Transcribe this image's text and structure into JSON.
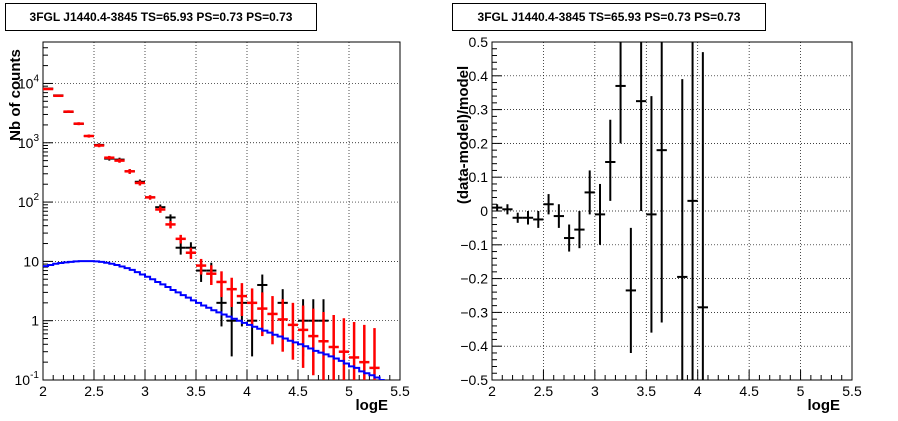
{
  "chart_data": [
    {
      "type": "scatter",
      "title": "3FGL J1440.4-3845 TS=65.93 PS=0.73 PS=0.73",
      "xlabel": "logE",
      "ylabel": "Nb of counts",
      "xlim": [
        2,
        5.5
      ],
      "ylim": [
        0.1,
        50000
      ],
      "yscale": "log",
      "grid": true,
      "x_ticks": [
        2,
        2.5,
        3,
        3.5,
        4,
        4.5,
        5,
        5.5
      ],
      "x_tick_labels": [
        "2",
        "2.5",
        "3",
        "3.5",
        "4",
        "4.5",
        "5",
        "5.5"
      ],
      "y_ticks": [
        0.1,
        1,
        10,
        100,
        1000,
        10000
      ],
      "y_tick_labels": [
        "10^-1",
        "1",
        "10",
        "10^2",
        "10^3",
        "10^4"
      ],
      "series": [
        {
          "color": "#000000",
          "style": "errorbars",
          "points": [
            {
              "x": 2.05,
              "y": 8200,
              "ylo": 8020,
              "yhi": 8380
            },
            {
              "x": 2.15,
              "y": 6300,
              "ylo": 6140,
              "yhi": 6460
            },
            {
              "x": 2.25,
              "y": 3300,
              "ylo": 3190,
              "yhi": 3410
            },
            {
              "x": 2.35,
              "y": 2080,
              "ylo": 1990,
              "yhi": 2170
            },
            {
              "x": 2.45,
              "y": 1300,
              "ylo": 1230,
              "yhi": 1370
            },
            {
              "x": 2.55,
              "y": 920,
              "ylo": 860,
              "yhi": 980
            },
            {
              "x": 2.65,
              "y": 540,
              "ylo": 500,
              "yhi": 580
            },
            {
              "x": 2.75,
              "y": 520,
              "ylo": 480,
              "yhi": 560
            },
            {
              "x": 2.85,
              "y": 330,
              "ylo": 300,
              "yhi": 360
            },
            {
              "x": 2.95,
              "y": 220,
              "ylo": 200,
              "yhi": 240
            },
            {
              "x": 3.05,
              "y": 120,
              "ylo": 110,
              "yhi": 130
            },
            {
              "x": 3.15,
              "y": 82,
              "ylo": 73,
              "yhi": 91
            },
            {
              "x": 3.25,
              "y": 55,
              "ylo": 48,
              "yhi": 62
            },
            {
              "x": 3.35,
              "y": 17,
              "ylo": 13,
              "yhi": 21
            },
            {
              "x": 3.45,
              "y": 17,
              "ylo": 13,
              "yhi": 21
            },
            {
              "x": 3.55,
              "y": 7,
              "ylo": 4.5,
              "yhi": 9.5
            },
            {
              "x": 3.65,
              "y": 7,
              "ylo": 4.5,
              "yhi": 9.5
            },
            {
              "x": 3.75,
              "y": 2,
              "ylo": 0.8,
              "yhi": 3.4
            },
            {
              "x": 3.85,
              "y": 1,
              "ylo": 0.25,
              "yhi": 2.3
            },
            {
              "x": 3.95,
              "y": 2,
              "ylo": 0.8,
              "yhi": 3.4
            },
            {
              "x": 4.05,
              "y": 1,
              "ylo": 0.25,
              "yhi": 2.3
            },
            {
              "x": 4.15,
              "y": 4,
              "ylo": 2.2,
              "yhi": 6
            },
            {
              "x": 4.35,
              "y": 2,
              "ylo": 0.8,
              "yhi": 3.4
            },
            {
              "x": 4.55,
              "y": 1,
              "ylo": 0.25,
              "yhi": 2.3
            },
            {
              "x": 4.65,
              "y": 1,
              "ylo": 0.25,
              "yhi": 2.3
            },
            {
              "x": 4.75,
              "y": 1,
              "ylo": 0.25,
              "yhi": 2.3
            }
          ]
        },
        {
          "color": "#ff0000",
          "style": "errorbars",
          "points": [
            {
              "x": 2.05,
              "y": 8050,
              "ylo": 7780,
              "yhi": 8330
            },
            {
              "x": 2.15,
              "y": 6200,
              "ylo": 5980,
              "yhi": 6420
            },
            {
              "x": 2.25,
              "y": 3350,
              "ylo": 3180,
              "yhi": 3520
            },
            {
              "x": 2.35,
              "y": 2100,
              "ylo": 1980,
              "yhi": 2220
            },
            {
              "x": 2.45,
              "y": 1300,
              "ylo": 1220,
              "yhi": 1380
            },
            {
              "x": 2.55,
              "y": 900,
              "ylo": 840,
              "yhi": 960
            },
            {
              "x": 2.65,
              "y": 560,
              "ylo": 520,
              "yhi": 600
            },
            {
              "x": 2.75,
              "y": 500,
              "ylo": 460,
              "yhi": 540
            },
            {
              "x": 2.85,
              "y": 330,
              "ylo": 300,
              "yhi": 360
            },
            {
              "x": 2.95,
              "y": 210,
              "ylo": 190,
              "yhi": 230
            },
            {
              "x": 3.05,
              "y": 120,
              "ylo": 110,
              "yhi": 130
            },
            {
              "x": 3.15,
              "y": 75,
              "ylo": 66,
              "yhi": 84
            },
            {
              "x": 3.25,
              "y": 42,
              "ylo": 36,
              "yhi": 48
            },
            {
              "x": 3.35,
              "y": 24,
              "ylo": 20,
              "yhi": 28
            },
            {
              "x": 3.45,
              "y": 14,
              "ylo": 11,
              "yhi": 17
            },
            {
              "x": 3.55,
              "y": 8.5,
              "ylo": 6,
              "yhi": 11
            },
            {
              "x": 3.65,
              "y": 6.2,
              "ylo": 4,
              "yhi": 8.6
            },
            {
              "x": 3.75,
              "y": 4.5,
              "ylo": 2.5,
              "yhi": 6.8
            },
            {
              "x": 3.85,
              "y": 3.4,
              "ylo": 1.7,
              "yhi": 5.3
            },
            {
              "x": 3.95,
              "y": 2.6,
              "ylo": 1.2,
              "yhi": 4.3
            },
            {
              "x": 4.05,
              "y": 2.0,
              "ylo": 0.8,
              "yhi": 3.5
            },
            {
              "x": 4.15,
              "y": 1.6,
              "ylo": 0.55,
              "yhi": 3.0
            },
            {
              "x": 4.25,
              "y": 1.3,
              "ylo": 0.4,
              "yhi": 2.6
            },
            {
              "x": 4.35,
              "y": 1.05,
              "ylo": 0.3,
              "yhi": 2.3
            },
            {
              "x": 4.45,
              "y": 0.85,
              "ylo": 0.22,
              "yhi": 2.0
            },
            {
              "x": 4.55,
              "y": 0.7,
              "ylo": 0.16,
              "yhi": 1.8
            },
            {
              "x": 4.65,
              "y": 0.55,
              "ylo": 0.12,
              "yhi": 1.6
            },
            {
              "x": 4.75,
              "y": 0.45,
              "ylo": 0.1,
              "yhi": 1.4
            },
            {
              "x": 4.85,
              "y": 0.36,
              "ylo": 0.1,
              "yhi": 1.25
            },
            {
              "x": 4.95,
              "y": 0.3,
              "ylo": 0.1,
              "yhi": 1.1
            },
            {
              "x": 5.05,
              "y": 0.24,
              "ylo": 0.1,
              "yhi": 0.95
            },
            {
              "x": 5.15,
              "y": 0.2,
              "ylo": 0.1,
              "yhi": 0.85
            },
            {
              "x": 5.25,
              "y": 0.16,
              "ylo": 0.1,
              "yhi": 0.75
            }
          ]
        },
        {
          "color": "#0000ff",
          "style": "step",
          "bin_width": 0.05,
          "points": [
            {
              "x": 2.025,
              "y": 8.3
            },
            {
              "x": 2.075,
              "y": 8.7
            },
            {
              "x": 2.125,
              "y": 9.1
            },
            {
              "x": 2.175,
              "y": 9.4
            },
            {
              "x": 2.225,
              "y": 9.6
            },
            {
              "x": 2.275,
              "y": 9.8
            },
            {
              "x": 2.325,
              "y": 10.0
            },
            {
              "x": 2.375,
              "y": 10.1
            },
            {
              "x": 2.425,
              "y": 10.1
            },
            {
              "x": 2.475,
              "y": 10.1
            },
            {
              "x": 2.525,
              "y": 10.0
            },
            {
              "x": 2.575,
              "y": 9.8
            },
            {
              "x": 2.625,
              "y": 9.5
            },
            {
              "x": 2.675,
              "y": 9.1
            },
            {
              "x": 2.725,
              "y": 8.7
            },
            {
              "x": 2.775,
              "y": 8.2
            },
            {
              "x": 2.825,
              "y": 7.7
            },
            {
              "x": 2.875,
              "y": 7.2
            },
            {
              "x": 2.925,
              "y": 6.6
            },
            {
              "x": 2.975,
              "y": 6.0
            },
            {
              "x": 3.025,
              "y": 5.5
            },
            {
              "x": 3.075,
              "y": 5.0
            },
            {
              "x": 3.125,
              "y": 4.5
            },
            {
              "x": 3.175,
              "y": 4.1
            },
            {
              "x": 3.225,
              "y": 3.7
            },
            {
              "x": 3.275,
              "y": 3.3
            },
            {
              "x": 3.325,
              "y": 3.0
            },
            {
              "x": 3.375,
              "y": 2.7
            },
            {
              "x": 3.425,
              "y": 2.45
            },
            {
              "x": 3.475,
              "y": 2.2
            },
            {
              "x": 3.525,
              "y": 2.0
            },
            {
              "x": 3.575,
              "y": 1.8
            },
            {
              "x": 3.625,
              "y": 1.65
            },
            {
              "x": 3.675,
              "y": 1.5
            },
            {
              "x": 3.725,
              "y": 1.38
            },
            {
              "x": 3.775,
              "y": 1.27
            },
            {
              "x": 3.825,
              "y": 1.17
            },
            {
              "x": 3.875,
              "y": 1.08
            },
            {
              "x": 3.925,
              "y": 1.0
            },
            {
              "x": 3.975,
              "y": 0.92
            },
            {
              "x": 4.025,
              "y": 0.85
            },
            {
              "x": 4.075,
              "y": 0.79
            },
            {
              "x": 4.125,
              "y": 0.73
            },
            {
              "x": 4.175,
              "y": 0.68
            },
            {
              "x": 4.225,
              "y": 0.63
            },
            {
              "x": 4.275,
              "y": 0.58
            },
            {
              "x": 4.325,
              "y": 0.54
            },
            {
              "x": 4.375,
              "y": 0.5
            },
            {
              "x": 4.425,
              "y": 0.46
            },
            {
              "x": 4.475,
              "y": 0.43
            },
            {
              "x": 4.525,
              "y": 0.4
            },
            {
              "x": 4.575,
              "y": 0.37
            },
            {
              "x": 4.625,
              "y": 0.34
            },
            {
              "x": 4.675,
              "y": 0.31
            },
            {
              "x": 4.725,
              "y": 0.29
            },
            {
              "x": 4.775,
              "y": 0.27
            },
            {
              "x": 4.825,
              "y": 0.25
            },
            {
              "x": 4.875,
              "y": 0.23
            },
            {
              "x": 4.925,
              "y": 0.21
            },
            {
              "x": 4.975,
              "y": 0.19
            },
            {
              "x": 5.025,
              "y": 0.17
            },
            {
              "x": 5.075,
              "y": 0.16
            },
            {
              "x": 5.125,
              "y": 0.14
            },
            {
              "x": 5.175,
              "y": 0.13
            },
            {
              "x": 5.225,
              "y": 0.12
            },
            {
              "x": 5.275,
              "y": 0.11
            },
            {
              "x": 5.325,
              "y": 0.1
            }
          ]
        }
      ]
    },
    {
      "type": "scatter",
      "title": "3FGL J1440.4-3845 TS=65.93 PS=0.73 PS=0.73",
      "xlabel": "logE",
      "ylabel": "(data-model)/model",
      "xlim": [
        2,
        5.5
      ],
      "ylim": [
        -0.5,
        0.5
      ],
      "yscale": "linear",
      "grid": true,
      "x_ticks": [
        2,
        2.5,
        3,
        3.5,
        4,
        4.5,
        5,
        5.5
      ],
      "x_tick_labels": [
        "2",
        "2.5",
        "3",
        "3.5",
        "4",
        "4.5",
        "5",
        "5.5"
      ],
      "y_ticks": [
        -0.5,
        -0.4,
        -0.3,
        -0.2,
        -0.1,
        0,
        0.1,
        0.2,
        0.3,
        0.4,
        0.5
      ],
      "y_tick_labels": [
        "−0.5",
        "−0.4",
        "−0.3",
        "−0.2",
        "−0.1",
        "0",
        "0.1",
        "0.2",
        "0.3",
        "0.4",
        "0.5"
      ],
      "series": [
        {
          "color": "#000000",
          "style": "errorbars",
          "points": [
            {
              "x": 2.05,
              "y": 0.01,
              "ylo": 0.0,
              "yhi": 0.02
            },
            {
              "x": 2.15,
              "y": 0.005,
              "ylo": -0.01,
              "yhi": 0.02
            },
            {
              "x": 2.25,
              "y": -0.02,
              "ylo": -0.035,
              "yhi": -0.005
            },
            {
              "x": 2.35,
              "y": -0.02,
              "ylo": -0.04,
              "yhi": 0.0
            },
            {
              "x": 2.45,
              "y": -0.025,
              "ylo": -0.05,
              "yhi": 0.0
            },
            {
              "x": 2.55,
              "y": 0.02,
              "ylo": -0.01,
              "yhi": 0.05
            },
            {
              "x": 2.65,
              "y": -0.015,
              "ylo": -0.05,
              "yhi": 0.02
            },
            {
              "x": 2.75,
              "y": -0.08,
              "ylo": -0.12,
              "yhi": -0.04
            },
            {
              "x": 2.85,
              "y": -0.055,
              "ylo": -0.11,
              "yhi": 0.0
            },
            {
              "x": 2.95,
              "y": 0.055,
              "ylo": -0.01,
              "yhi": 0.12
            },
            {
              "x": 3.05,
              "y": -0.01,
              "ylo": -0.1,
              "yhi": 0.08
            },
            {
              "x": 3.15,
              "y": 0.145,
              "ylo": 0.03,
              "yhi": 0.27
            },
            {
              "x": 3.25,
              "y": 0.37,
              "ylo": 0.2,
              "yhi": 0.5
            },
            {
              "x": 3.35,
              "y": -0.235,
              "ylo": -0.42,
              "yhi": -0.05
            },
            {
              "x": 3.45,
              "y": 0.325,
              "ylo": 0.0,
              "yhi": 0.5
            },
            {
              "x": 3.55,
              "y": -0.01,
              "ylo": -0.36,
              "yhi": 0.34
            },
            {
              "x": 3.65,
              "y": 0.18,
              "ylo": -0.33,
              "yhi": 0.5
            },
            {
              "x": 3.85,
              "y": -0.195,
              "ylo": -0.5,
              "yhi": 0.39
            },
            {
              "x": 3.95,
              "y": 0.03,
              "ylo": -0.5,
              "yhi": 0.5
            },
            {
              "x": 4.05,
              "y": -0.285,
              "ylo": -0.5,
              "yhi": 0.47
            }
          ]
        }
      ]
    }
  ]
}
